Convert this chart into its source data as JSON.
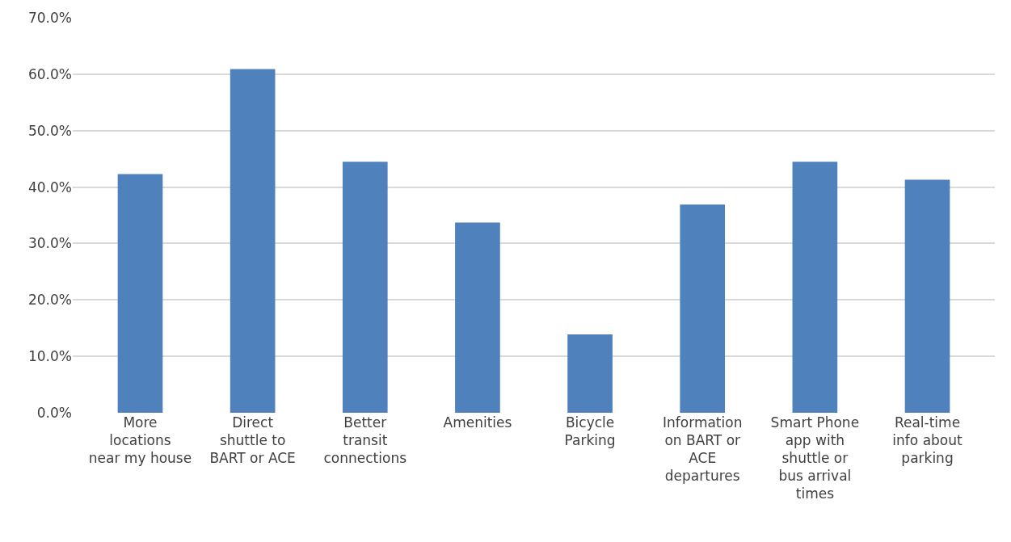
{
  "chart_data": {
    "type": "bar",
    "categories": [
      "More locations near my house",
      "Direct shuttle to BART or ACE",
      "Better transit connections",
      "Amenities",
      "Bicycle Parking",
      "Information on BART or ACE departures",
      "Smart Phone app with shuttle or bus arrival times",
      "Real-time info about parking"
    ],
    "values": [
      42.3,
      60.9,
      44.5,
      33.7,
      13.9,
      36.9,
      44.5,
      41.3
    ],
    "color": "#4f81bd",
    "ylim": [
      0,
      70
    ],
    "yticks": [
      {
        "value": 0,
        "label": "0.0%"
      },
      {
        "value": 10,
        "label": "10.0%"
      },
      {
        "value": 20,
        "label": "20.0%"
      },
      {
        "value": 30,
        "label": "30.0%"
      },
      {
        "value": 40,
        "label": "40.0%"
      },
      {
        "value": 50,
        "label": "50.0%"
      },
      {
        "value": 60,
        "label": "60.0%"
      },
      {
        "value": 70,
        "label": "70.0%"
      }
    ],
    "grid": "y"
  }
}
